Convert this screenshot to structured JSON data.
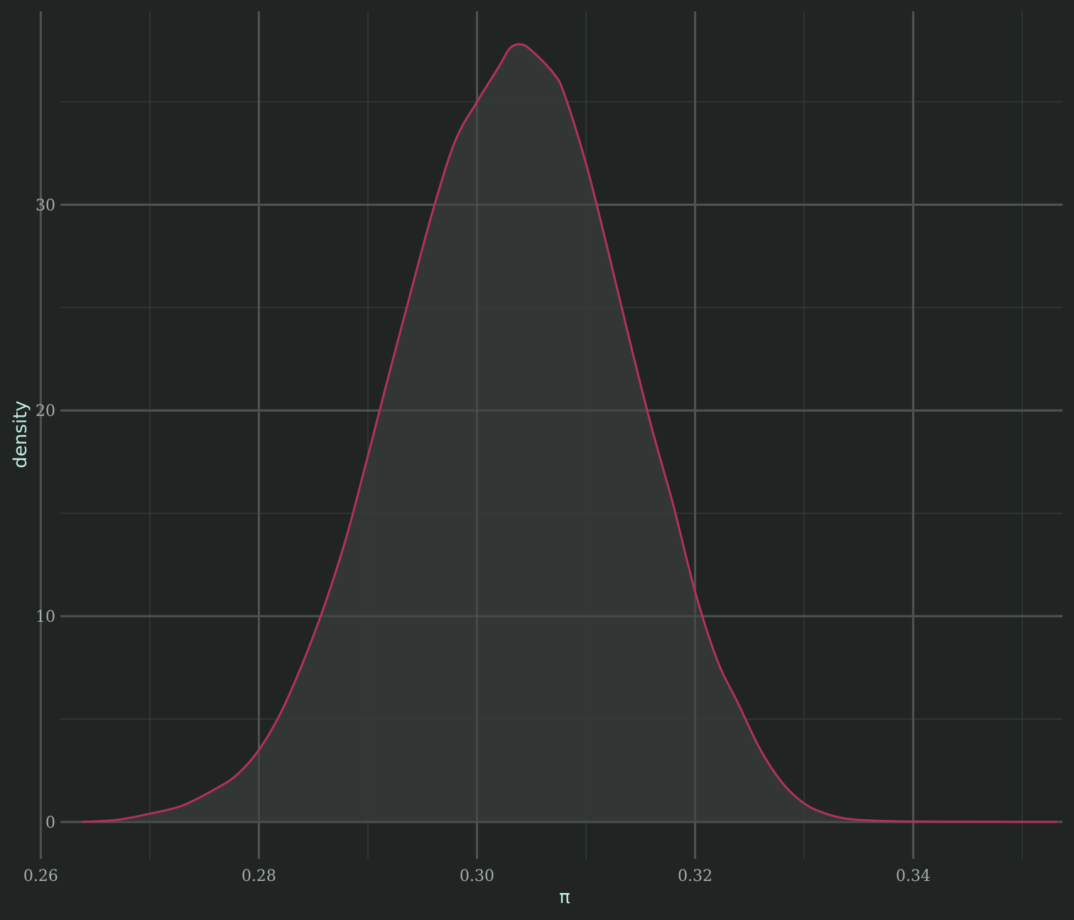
{
  "colors": {
    "background": "#202423",
    "grid_major": "#4e5451",
    "grid_minor": "#353b38",
    "fill": "#363b39",
    "line": "#b3305f",
    "tick_text": "#a6aca9",
    "axis_title": "#bfeee3"
  },
  "chart_data": {
    "type": "area",
    "title": "",
    "xlabel": "π",
    "ylabel": "density",
    "xlim": [
      0.2618,
      0.3537
    ],
    "ylim": [
      -1.8,
      39.4
    ],
    "x_ticks": [
      0.26,
      0.28,
      0.3,
      0.32,
      0.34
    ],
    "x_tick_labels": [
      "0.26",
      "0.28",
      "0.30",
      "0.32",
      "0.34"
    ],
    "x_minor_ticks": [
      0.27,
      0.29,
      0.31,
      0.33,
      0.35
    ],
    "y_ticks": [
      0,
      10,
      20,
      30
    ],
    "y_tick_labels": [
      "0",
      "10",
      "20",
      "30"
    ],
    "y_minor_ticks": [
      5,
      15,
      25,
      35
    ],
    "grid": true,
    "legend": "none",
    "series": [
      {
        "x": [
          0.2638,
          0.267,
          0.27,
          0.273,
          0.276,
          0.278,
          0.28,
          0.282,
          0.284,
          0.286,
          0.288,
          0.29,
          0.292,
          0.294,
          0.296,
          0.298,
          0.3,
          0.302,
          0.303,
          0.304,
          0.305,
          0.307,
          0.308,
          0.31,
          0.312,
          0.314,
          0.316,
          0.318,
          0.32,
          0.322,
          0.324,
          0.326,
          0.328,
          0.33,
          0.332,
          0.334,
          0.337,
          0.34,
          0.345,
          0.35,
          0.3532
        ],
        "y": [
          0.0,
          0.1,
          0.4,
          0.8,
          1.6,
          2.3,
          3.5,
          5.3,
          7.7,
          10.5,
          13.8,
          17.8,
          21.9,
          25.9,
          29.8,
          33.1,
          35.0,
          36.7,
          37.6,
          37.8,
          37.5,
          36.4,
          35.4,
          32.0,
          27.8,
          23.4,
          19.2,
          15.4,
          11.2,
          7.9,
          5.7,
          3.5,
          1.9,
          0.9,
          0.4,
          0.15,
          0.05,
          0.02,
          0.01,
          0.0,
          0.0
        ]
      }
    ]
  }
}
